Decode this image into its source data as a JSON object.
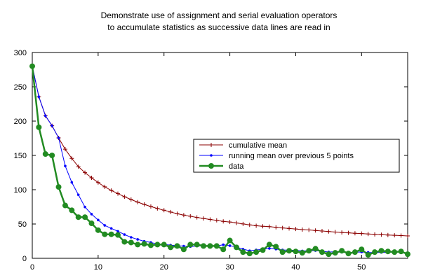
{
  "chart_data": {
    "type": "line",
    "title_lines": [
      "Demonstrate use of assignment and serial evaluation operators",
      "to accumulate statistics as successive data lines are read in"
    ],
    "xlabel": "",
    "ylabel": "",
    "xlim": [
      0,
      57
    ],
    "ylim": [
      0,
      300
    ],
    "x_ticks": [
      0,
      10,
      20,
      30,
      40,
      50
    ],
    "y_ticks": [
      0,
      50,
      100,
      150,
      200,
      250,
      300
    ],
    "grid": false,
    "legend_position": "middle-right",
    "x": [
      0,
      1,
      2,
      3,
      4,
      5,
      6,
      7,
      8,
      9,
      10,
      11,
      12,
      13,
      14,
      15,
      16,
      17,
      18,
      19,
      20,
      21,
      22,
      23,
      24,
      25,
      26,
      27,
      28,
      29,
      30,
      31,
      32,
      33,
      34,
      35,
      36,
      37,
      38,
      39,
      40,
      41,
      42,
      43,
      44,
      45,
      46,
      47,
      48,
      49,
      50,
      51,
      52,
      53,
      54,
      55,
      56,
      57
    ],
    "series": [
      {
        "name": "cumulative mean",
        "color": "#8b0000",
        "marker": "plus",
        "values": [
          280.0,
          235.5,
          207.7,
          193.3,
          175.5,
          159.0,
          145.6,
          133.6,
          124.9,
          117.4,
          110.4,
          104.2,
          98.9,
          94.3,
          89.7,
          85.7,
          81.9,
          78.6,
          75.5,
          72.6,
          70.1,
          67.5,
          65.0,
          63.0,
          61.3,
          59.6,
          58.0,
          56.6,
          55.3,
          53.8,
          52.9,
          51.5,
          50.1,
          48.7,
          47.5,
          46.7,
          46.2,
          45.2,
          44.3,
          43.5,
          42.7,
          41.9,
          41.3,
          40.6,
          39.8,
          39.0,
          38.3,
          37.6,
          37.1,
          36.5,
          36.1,
          35.4,
          34.8,
          34.4,
          33.9,
          33.5,
          33.1,
          32.6
        ]
      },
      {
        "name": "running mean over previous 5 points",
        "color": "#0000ff",
        "marker": "dot",
        "values": [
          280.0,
          235.5,
          207.7,
          193.3,
          175.5,
          134.6,
          110.6,
          92.6,
          74.8,
          64.4,
          55.8,
          48.0,
          43.6,
          39.4,
          34.6,
          30.6,
          27.6,
          24.8,
          23.2,
          20.6,
          20.2,
          19.2,
          18.2,
          17.8,
          17.0,
          17.8,
          18.4,
          17.8,
          18.0,
          19.8,
          18.4,
          16.4,
          13.4,
          11.0,
          12.2,
          13.0,
          14.4,
          13.4,
          12.2,
          11.8,
          11.8,
          10.8,
          11.0,
          11.2,
          10.2,
          9.2,
          9.4,
          8.8,
          8.2,
          8.8,
          9.2,
          8.6,
          8.4,
          8.6,
          8.6,
          9.4,
          9.0,
          7.8
        ]
      },
      {
        "name": "data",
        "color": "#228b22",
        "marker": "circle",
        "values": [
          280,
          191,
          152,
          150,
          104,
          77,
          70,
          60,
          60,
          51,
          41,
          35,
          35,
          34,
          24,
          23,
          20,
          21,
          19,
          20,
          20,
          16,
          18,
          13,
          20,
          20,
          18,
          18,
          18,
          13,
          26,
          16,
          9,
          7,
          9,
          12,
          20,
          17,
          9,
          11,
          10,
          8,
          11,
          14,
          9,
          6,
          8,
          11,
          7,
          9,
          13,
          5,
          9,
          11,
          10,
          9,
          10,
          6
        ]
      }
    ]
  }
}
